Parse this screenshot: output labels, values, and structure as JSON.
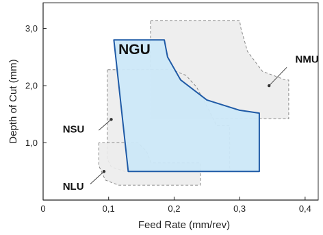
{
  "chart_data": {
    "type": "area",
    "xlabel": "Feed Rate (mm/rev)",
    "ylabel": "Depth of Cut (mm)",
    "xlim": [
      0,
      0.42
    ],
    "ylim": [
      0,
      3.45
    ],
    "origin_label": "0",
    "x_ticks": [
      {
        "value": 0.1,
        "label": "0,1"
      },
      {
        "value": 0.2,
        "label": "0,2"
      },
      {
        "value": 0.3,
        "label": "0,3"
      },
      {
        "value": 0.4,
        "label": "0,4"
      }
    ],
    "y_ticks": [
      {
        "value": 1.0,
        "label": "1,0"
      },
      {
        "value": 2.0,
        "label": "2,0"
      },
      {
        "value": 3.0,
        "label": "3,0"
      }
    ],
    "grid": false,
    "regions": [
      {
        "name": "NMU",
        "fill": "#ececec",
        "stroke": "#888888",
        "dashed": true,
        "boundary": [
          [
            0.164,
            3.14
          ],
          [
            0.3,
            3.14
          ],
          [
            0.302,
            3.0
          ],
          [
            0.312,
            2.6
          ],
          [
            0.335,
            2.25
          ],
          [
            0.37,
            2.1
          ],
          [
            0.375,
            2.1
          ],
          [
            0.375,
            1.42
          ],
          [
            0.198,
            1.42
          ]
        ],
        "bottom_corner": [
          0.164,
          1.42
        ],
        "marker": [
          0.345,
          2.0
        ]
      },
      {
        "name": "NSU",
        "fill": "#ececec",
        "stroke": "#888888",
        "dashed": true,
        "boundary": [
          [
            0.098,
            2.28
          ],
          [
            0.098,
            0.72
          ],
          [
            0.104,
            0.58
          ],
          [
            0.125,
            0.5
          ],
          [
            0.285,
            0.5
          ],
          [
            0.285,
            1.3
          ],
          [
            0.265,
            1.3
          ],
          [
            0.252,
            1.6
          ],
          [
            0.234,
            1.98
          ],
          [
            0.218,
            2.18
          ],
          [
            0.196,
            2.28
          ]
        ],
        "marker": [
          0.104,
          1.41
        ]
      },
      {
        "name": "NLU",
        "fill": "#ececec",
        "stroke": "#888888",
        "dashed": true,
        "boundary": [
          [
            0.085,
            1.0
          ],
          [
            0.085,
            0.6
          ],
          [
            0.095,
            0.35
          ],
          [
            0.115,
            0.26
          ],
          [
            0.24,
            0.26
          ],
          [
            0.24,
            0.65
          ],
          [
            0.165,
            0.65
          ],
          [
            0.158,
            0.85
          ],
          [
            0.145,
            1.0
          ]
        ],
        "marker": [
          0.093,
          0.5
        ]
      },
      {
        "name": "NGU",
        "fill": "#cce8f8",
        "stroke": "#1f5aa6",
        "dashed": false,
        "boundary": [
          [
            0.108,
            2.8
          ],
          [
            0.185,
            2.8
          ],
          [
            0.19,
            2.5
          ],
          [
            0.21,
            2.1
          ],
          [
            0.25,
            1.75
          ],
          [
            0.3,
            1.57
          ],
          [
            0.33,
            1.52
          ],
          [
            0.33,
            0.5
          ],
          [
            0.13,
            0.5
          ]
        ],
        "marker": null
      }
    ],
    "labels": [
      {
        "text": "NGU",
        "x": 0.115,
        "y": 2.55
      },
      {
        "text": "NMU",
        "x": 0.385,
        "y": 2.4
      },
      {
        "text": "NSU",
        "x": 0.03,
        "y": 1.18
      },
      {
        "text": "NLU",
        "x": 0.03,
        "y": 0.18
      }
    ]
  }
}
